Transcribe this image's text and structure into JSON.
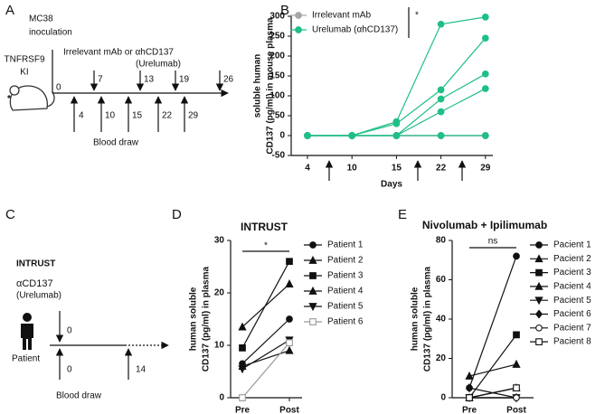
{
  "diagram_a": {
    "panel": "A",
    "inoculation": [
      "MC38",
      "inoculation"
    ],
    "model": [
      "TNFRSF9",
      "KI"
    ],
    "start_day": "0",
    "treatment": [
      "Irrelevant  mAb or αhCD137",
      "(Urelumab)"
    ],
    "treatment_days": [
      "7",
      "13",
      "19",
      "26"
    ],
    "blood_days": [
      "4",
      "10",
      "15",
      "22",
      "29"
    ],
    "blood_label": "Blood draw"
  },
  "diagram_c": {
    "panel": "C",
    "trial": "INTRUST",
    "treatment": [
      "αCD137",
      "(Urelumab)"
    ],
    "treatment_day": "0",
    "subject": "Patient",
    "blood_days": [
      "0",
      "14"
    ],
    "blood_label": "Blood draw"
  },
  "chart_data": [
    {
      "type": "line",
      "panel": "B",
      "ylabel": [
        "soluble human",
        "CD137 (pg/ml) in mouse plasma"
      ],
      "xlabel": "Days",
      "categories": [
        "4",
        "10",
        "15",
        "22",
        "29"
      ],
      "ylim": [
        -50,
        300
      ],
      "yticks": [
        -50,
        0,
        50,
        100,
        150,
        200,
        250,
        300
      ],
      "annotation": "*",
      "series": [
        {
          "name": "Irrelevant mAb",
          "color": "#a6a6a6",
          "lines": [
            [
              0,
              0,
              0,
              0,
              0
            ],
            [
              0,
              0,
              0,
              0,
              0
            ]
          ]
        },
        {
          "name": "Urelumab (αhCD137)",
          "color": "#1fbf85",
          "lines": [
            [
              0,
              0,
              35,
              280,
              298
            ],
            [
              0,
              0,
              30,
              115,
              245
            ],
            [
              0,
              0,
              0,
              92,
              155
            ],
            [
              0,
              0,
              0,
              60,
              118
            ],
            [
              0,
              0,
              0,
              0,
              0
            ]
          ]
        }
      ]
    },
    {
      "type": "line",
      "panel": "D",
      "title": "INTRUST",
      "ylabel": [
        "human soluble",
        "CD137 (pg/ml) in plasma"
      ],
      "categories": [
        "Pre",
        "Post"
      ],
      "ylim": [
        0,
        30
      ],
      "yticks": [
        0,
        10,
        20,
        30
      ],
      "annotation": "*",
      "series": [
        {
          "name": "Patient 1",
          "color": "#111111",
          "marker": "circle",
          "values": [
            6.5,
            15
          ]
        },
        {
          "name": "Patient 2",
          "color": "#111111",
          "marker": "triangle",
          "values": [
            13.5,
            21.7
          ]
        },
        {
          "name": "Patient 3",
          "color": "#111111",
          "marker": "square",
          "values": [
            9.5,
            26
          ]
        },
        {
          "name": "Patient 4",
          "color": "#111111",
          "marker": "triangle",
          "values": [
            6,
            9
          ]
        },
        {
          "name": "Patient 5",
          "color": "#111111",
          "marker": "triangle-down",
          "values": [
            5.5,
            11
          ]
        },
        {
          "name": "Patient 6",
          "color": "#999999",
          "marker": "open-square",
          "values": [
            0,
            10.5
          ]
        }
      ]
    },
    {
      "type": "line",
      "panel": "E",
      "title": "Nivolumab + Ipilimumab",
      "ylabel": [
        "human soluble",
        "CD137 (pg/ml) in plasma"
      ],
      "categories": [
        "Pre",
        "Post"
      ],
      "ylim": [
        0,
        80
      ],
      "yticks": [
        0,
        20,
        40,
        60,
        80
      ],
      "annotation": "ns",
      "series": [
        {
          "name": "Pacient 1",
          "color": "#111111",
          "marker": "circle",
          "values": [
            5,
            72
          ]
        },
        {
          "name": "Pacient 2",
          "color": "#111111",
          "marker": "triangle",
          "values": [
            11,
            17
          ]
        },
        {
          "name": "Pacient 3",
          "color": "#111111",
          "marker": "square",
          "values": [
            0,
            32
          ]
        },
        {
          "name": "Pacient 4",
          "color": "#111111",
          "marker": "triangle",
          "values": [
            0,
            5
          ]
        },
        {
          "name": "Pacient 5",
          "color": "#111111",
          "marker": "triangle-down",
          "values": [
            0,
            0
          ]
        },
        {
          "name": "Pacient 6",
          "color": "#111111",
          "marker": "diamond",
          "values": [
            5,
            0
          ]
        },
        {
          "name": "Pacient 7",
          "color": "#111111",
          "marker": "open-circle",
          "values": [
            0,
            0
          ]
        },
        {
          "name": "Pacient 8",
          "color": "#111111",
          "marker": "open-square",
          "values": [
            0,
            5
          ]
        }
      ]
    }
  ]
}
